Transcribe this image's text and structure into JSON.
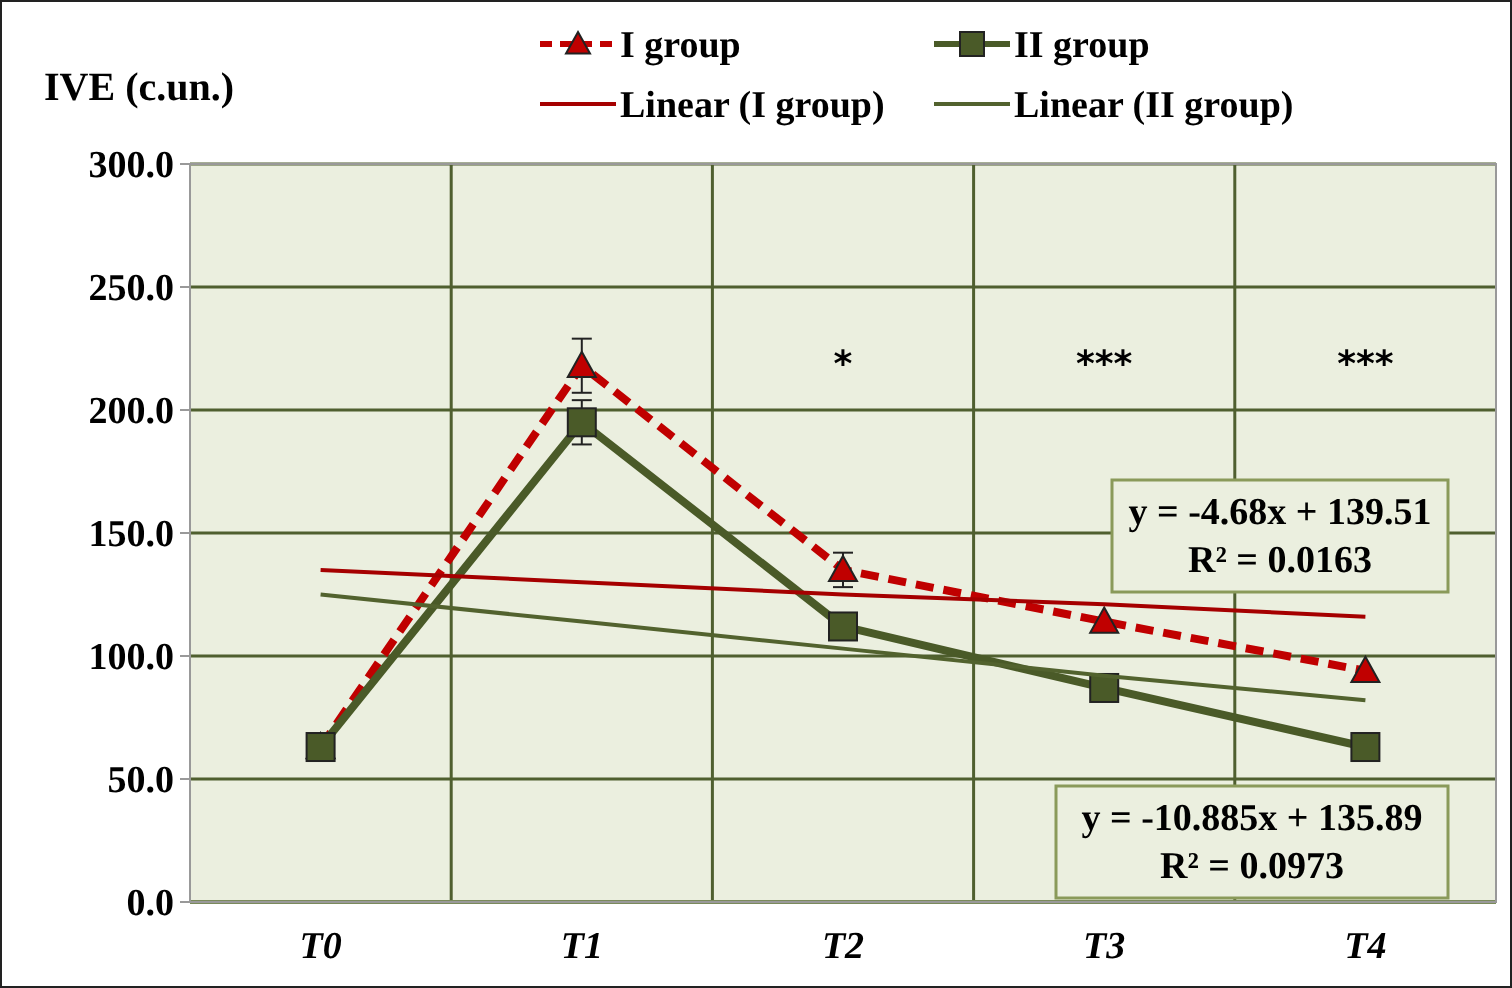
{
  "chart_data": {
    "type": "line",
    "ylabel": "IVE (c.un.)",
    "categories": [
      "T0",
      "T1",
      "T2",
      "T3",
      "T4"
    ],
    "ylim": [
      0,
      300
    ],
    "yticks": [
      {
        "value": 0,
        "label": "0.0"
      },
      {
        "value": 50,
        "label": "50.0"
      },
      {
        "value": 100,
        "label": "100.0"
      },
      {
        "value": 150,
        "label": "150.0"
      },
      {
        "value": 200,
        "label": "200.0"
      },
      {
        "value": 250,
        "label": "250.0"
      },
      {
        "value": 300,
        "label": "300.0"
      }
    ],
    "grid": true,
    "legend": "top",
    "series": [
      {
        "name": "I group",
        "color": "#c00000",
        "values": [
          63,
          218,
          135,
          114,
          94
        ],
        "errors": [
          null,
          11,
          7,
          null,
          null
        ],
        "marker": "triangle",
        "line_style": "dashed"
      },
      {
        "name": "II group",
        "color": "#4a5a28",
        "values": [
          63,
          195,
          112,
          87,
          63
        ],
        "errors": [
          null,
          9,
          null,
          null,
          null
        ],
        "marker": "square",
        "line_style": "solid"
      },
      {
        "name": "Linear (I group)",
        "color": "#a50000",
        "values": [
          135,
          130,
          125,
          121,
          116
        ],
        "marker": "none",
        "line_style": "solid"
      },
      {
        "name": "Linear (II group)",
        "color": "#52622e",
        "values": [
          125,
          114,
          103,
          92,
          82
        ],
        "marker": "none",
        "line_style": "solid"
      }
    ],
    "annotations": [
      "*",
      "***",
      "***",
      "y = -4.68x + 139.51\nR² = 0.0163",
      "y = -10.885x + 135.89\nR² = 0.0973"
    ]
  }
}
